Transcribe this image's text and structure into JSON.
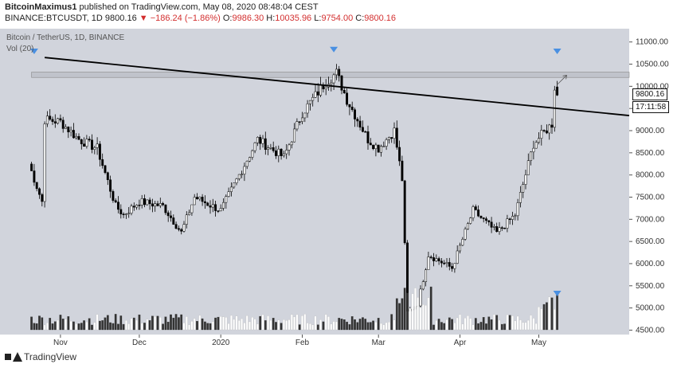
{
  "header": {
    "author": "BitcoinMaximus1",
    "published": "published on TradingView.com, May 08, 2020 08:48:04 CEST",
    "symbol": "BINANCE:BTCUSDT, 1D",
    "last": "9800.16",
    "change": "−186.24 (−1.86%)",
    "open_label": "O:",
    "open": "9986.30",
    "high_label": "H:",
    "high": "10035.96",
    "low_label": "L:",
    "low": "9754.00",
    "close_label": "C:",
    "close": "9800.16"
  },
  "legend": {
    "title": "Bitcoin / TetherUS, 1D, BINANCE",
    "volume": "Vol (20)"
  },
  "price_tags": {
    "last_price": "9800.16",
    "countdown": "17:11:58"
  },
  "footer": {
    "brand": "TradingView"
  },
  "colors": {
    "background": "#d1d4dc",
    "up_candle": "#ffffff",
    "down_candle": "#000000",
    "marker": "#4a90e2",
    "trendline": "#000000",
    "resistance_zone": "#c0c3cb"
  },
  "chart_data": {
    "type": "candlestick",
    "title": "Bitcoin / TetherUS, 1D, BINANCE",
    "x_tick_labels": [
      "Nov",
      "Dec",
      "2020",
      "Feb",
      "Mar",
      "Apr",
      "May"
    ],
    "y_tick_labels": [
      "11000.00",
      "10500.00",
      "10000.00",
      "9500.00",
      "9000.00",
      "8500.00",
      "8000.00",
      "7500.00",
      "7000.00",
      "6500.00",
      "6000.00",
      "5500.00",
      "5000.00",
      "4500.00"
    ],
    "ylim": [
      4400,
      11300
    ],
    "resistance_zone": [
      10200,
      10320
    ],
    "trendline_points": [
      [
        "2019-10-26",
        10650
      ],
      [
        "2020-05-12",
        9340
      ]
    ],
    "close_path": [
      [
        "2019-10-20",
        8250
      ],
      [
        "2019-10-25",
        7400
      ],
      [
        "2019-10-26",
        9250
      ],
      [
        "2019-11-01",
        9200
      ],
      [
        "2019-11-08",
        8800
      ],
      [
        "2019-11-15",
        8600
      ],
      [
        "2019-11-22",
        7300
      ],
      [
        "2019-11-25",
        7100
      ],
      [
        "2019-12-01",
        7400
      ],
      [
        "2019-12-10",
        7300
      ],
      [
        "2019-12-17",
        6700
      ],
      [
        "2019-12-22",
        7500
      ],
      [
        "2020-01-01",
        7200
      ],
      [
        "2020-01-08",
        8000
      ],
      [
        "2020-01-15",
        8800
      ],
      [
        "2020-01-25",
        8400
      ],
      [
        "2020-02-01",
        9400
      ],
      [
        "2020-02-10",
        10100
      ],
      [
        "2020-02-14",
        10300
      ],
      [
        "2020-02-18",
        9700
      ],
      [
        "2020-02-26",
        8800
      ],
      [
        "2020-03-01",
        8600
      ],
      [
        "2020-03-07",
        9000
      ],
      [
        "2020-03-10",
        7900
      ],
      [
        "2020-03-12",
        4900
      ],
      [
        "2020-03-16",
        5100
      ],
      [
        "2020-03-20",
        6200
      ],
      [
        "2020-03-29",
        5900
      ],
      [
        "2020-04-06",
        7200
      ],
      [
        "2020-04-15",
        6700
      ],
      [
        "2020-04-22",
        7100
      ],
      [
        "2020-04-29",
        8700
      ],
      [
        "2020-05-02",
        8900
      ],
      [
        "2020-05-06",
        9150
      ],
      [
        "2020-05-07",
        9990
      ],
      [
        "2020-05-08",
        9800
      ]
    ],
    "current": {
      "open": 9986.3,
      "high": 10035.96,
      "low": 9754.0,
      "close": 9800.16
    }
  }
}
